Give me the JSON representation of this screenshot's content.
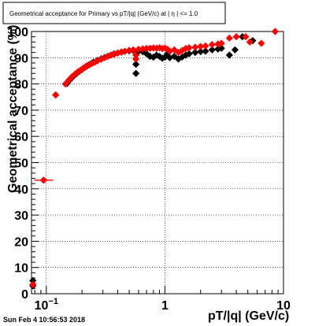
{
  "title_box": {
    "text": "Geometrical acceptance for Primary vs pT/|q| (GeV/c) at |  η  | <= 1.0"
  },
  "footer": {
    "timestamp": "Sun Feb  4 10:56:53 2018"
  },
  "chart_data": {
    "type": "scatter",
    "xlabel": "pT/|q| (GeV/c)",
    "ylabel": "Geometrical acceptance (%)",
    "xscale": "log",
    "xlim": [
      0.075,
      10
    ],
    "ylim": [
      0,
      100
    ],
    "grid": true,
    "x_ticks": [
      {
        "value": 0.1,
        "label": "10",
        "sup": "−1"
      },
      {
        "value": 1,
        "label": "1",
        "sup": ""
      },
      {
        "value": 10,
        "label": "10",
        "sup": ""
      }
    ],
    "y_ticks": [
      0,
      10,
      20,
      30,
      40,
      50,
      60,
      70,
      80,
      90,
      100
    ],
    "colors": {
      "series_black": "#000000",
      "series_red": "#ff0000"
    },
    "series": [
      {
        "key": "black",
        "points": [
          {
            "x": 0.077,
            "y": 5
          },
          {
            "x": 0.077,
            "y": 3
          },
          {
            "x": 0.095,
            "y": 43.3
          },
          {
            "x": 0.12,
            "y": 75.8
          },
          {
            "x": 0.15,
            "y": 80.2
          },
          {
            "x": 0.16,
            "y": 81.8
          },
          {
            "x": 0.17,
            "y": 83
          },
          {
            "x": 0.18,
            "y": 84
          },
          {
            "x": 0.19,
            "y": 84.8
          },
          {
            "x": 0.2,
            "y": 85.5
          },
          {
            "x": 0.21,
            "y": 86.2
          },
          {
            "x": 0.22,
            "y": 86.8
          },
          {
            "x": 0.23,
            "y": 87.3
          },
          {
            "x": 0.24,
            "y": 87.8
          },
          {
            "x": 0.25,
            "y": 88.3
          },
          {
            "x": 0.27,
            "y": 89
          },
          {
            "x": 0.29,
            "y": 89.6
          },
          {
            "x": 0.31,
            "y": 90.1
          },
          {
            "x": 0.33,
            "y": 90.6
          },
          {
            "x": 0.35,
            "y": 91
          },
          {
            "x": 0.37,
            "y": 91.4
          },
          {
            "x": 0.4,
            "y": 91.8
          },
          {
            "x": 0.43,
            "y": 92.1
          },
          {
            "x": 0.46,
            "y": 92.4
          },
          {
            "x": 0.5,
            "y": 92.6
          },
          {
            "x": 0.54,
            "y": 92.8
          },
          {
            "x": 0.57,
            "y": 84
          },
          {
            "x": 0.57,
            "y": 87.5
          },
          {
            "x": 0.6,
            "y": 92.5
          },
          {
            "x": 0.65,
            "y": 92.3
          },
          {
            "x": 0.7,
            "y": 91.5
          },
          {
            "x": 0.75,
            "y": 90.5
          },
          {
            "x": 0.8,
            "y": 90.2
          },
          {
            "x": 0.85,
            "y": 91
          },
          {
            "x": 0.9,
            "y": 90.5
          },
          {
            "x": 0.95,
            "y": 89.8
          },
          {
            "x": 1.0,
            "y": 90.2
          },
          {
            "x": 1.05,
            "y": 91.5
          },
          {
            "x": 1.1,
            "y": 90
          },
          {
            "x": 1.2,
            "y": 90.5
          },
          {
            "x": 1.3,
            "y": 89.5
          },
          {
            "x": 1.4,
            "y": 90.3
          },
          {
            "x": 1.5,
            "y": 91
          },
          {
            "x": 1.6,
            "y": 91.5
          },
          {
            "x": 1.8,
            "y": 92
          },
          {
            "x": 2.0,
            "y": 92.3
          },
          {
            "x": 2.2,
            "y": 92.5
          },
          {
            "x": 2.5,
            "y": 93
          },
          {
            "x": 2.8,
            "y": 93.3
          },
          {
            "x": 3.0,
            "y": 93.6
          },
          {
            "x": 3.5,
            "y": 91
          },
          {
            "x": 3.9,
            "y": 93
          },
          {
            "x": 4.5,
            "y": 98
          },
          {
            "x": 5.5,
            "y": 96.5
          }
        ]
      },
      {
        "key": "red",
        "points": [
          {
            "x": 0.077,
            "y": 3.5
          },
          {
            "x": 0.095,
            "y": 43.3
          },
          {
            "x": 0.12,
            "y": 75.8
          },
          {
            "x": 0.145,
            "y": 80
          },
          {
            "x": 0.155,
            "y": 81.5
          },
          {
            "x": 0.165,
            "y": 82.8
          },
          {
            "x": 0.175,
            "y": 83.8
          },
          {
            "x": 0.185,
            "y": 84.6
          },
          {
            "x": 0.195,
            "y": 85.3
          },
          {
            "x": 0.205,
            "y": 86
          },
          {
            "x": 0.215,
            "y": 86.6
          },
          {
            "x": 0.225,
            "y": 87.1
          },
          {
            "x": 0.24,
            "y": 87.7
          },
          {
            "x": 0.255,
            "y": 88.2
          },
          {
            "x": 0.27,
            "y": 88.8
          },
          {
            "x": 0.29,
            "y": 89.4
          },
          {
            "x": 0.31,
            "y": 90
          },
          {
            "x": 0.33,
            "y": 90.5
          },
          {
            "x": 0.35,
            "y": 91
          },
          {
            "x": 0.375,
            "y": 91.4
          },
          {
            "x": 0.4,
            "y": 91.8
          },
          {
            "x": 0.43,
            "y": 92.2
          },
          {
            "x": 0.46,
            "y": 92.5
          },
          {
            "x": 0.5,
            "y": 92.8
          },
          {
            "x": 0.54,
            "y": 93
          },
          {
            "x": 0.57,
            "y": 89.5
          },
          {
            "x": 0.57,
            "y": 91
          },
          {
            "x": 0.6,
            "y": 93.2
          },
          {
            "x": 0.65,
            "y": 93.4
          },
          {
            "x": 0.7,
            "y": 93.5
          },
          {
            "x": 0.75,
            "y": 93.6
          },
          {
            "x": 0.8,
            "y": 93.7
          },
          {
            "x": 0.85,
            "y": 93.6
          },
          {
            "x": 0.9,
            "y": 93.8
          },
          {
            "x": 0.95,
            "y": 93.5
          },
          {
            "x": 1.0,
            "y": 93.7
          },
          {
            "x": 1.05,
            "y": 93.2
          },
          {
            "x": 1.1,
            "y": 92.5
          },
          {
            "x": 1.2,
            "y": 93
          },
          {
            "x": 1.3,
            "y": 92
          },
          {
            "x": 1.4,
            "y": 92.8
          },
          {
            "x": 1.5,
            "y": 93.5
          },
          {
            "x": 1.6,
            "y": 93.8
          },
          {
            "x": 1.8,
            "y": 94
          },
          {
            "x": 2.0,
            "y": 94.3
          },
          {
            "x": 2.2,
            "y": 94.5
          },
          {
            "x": 2.5,
            "y": 95
          },
          {
            "x": 2.8,
            "y": 95.2
          },
          {
            "x": 3.0,
            "y": 95.5
          },
          {
            "x": 3.5,
            "y": 97.5
          },
          {
            "x": 4.0,
            "y": 98
          },
          {
            "x": 4.8,
            "y": 98
          },
          {
            "x": 5.2,
            "y": 96
          },
          {
            "x": 6.5,
            "y": 95.5
          },
          {
            "x": 8.5,
            "y": 100
          }
        ]
      }
    ]
  }
}
